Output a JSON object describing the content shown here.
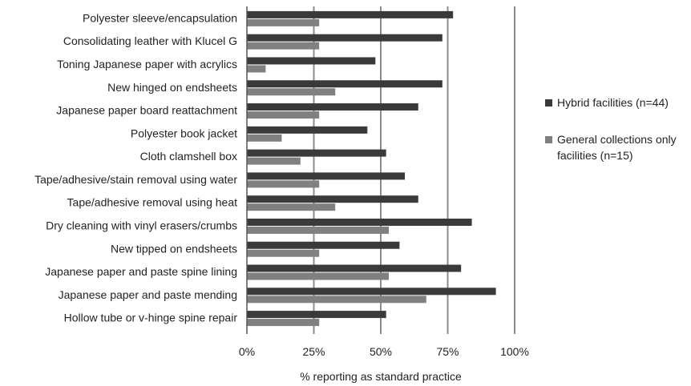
{
  "chart_data": {
    "type": "bar",
    "orientation": "horizontal",
    "categories": [
      "Polyester sleeve/encapsulation",
      "Consolidating leather with Klucel G",
      "Toning Japanese paper with acrylics",
      "New hinged on endsheets",
      "Japanese paper board reattachment",
      "Polyester book jacket",
      "Cloth clamshell box",
      "Tape/adhesive/stain removal using water",
      "Tape/adhesive removal using heat",
      "Dry cleaning with vinyl erasers/crumbs",
      "New tipped on endsheets",
      "Japanese paper and paste spine lining",
      "Japanese paper and paste mending",
      "Hollow tube or v-hinge spine repair"
    ],
    "series": [
      {
        "name": "Hybrid facilities (n=44)",
        "color": "#3a3a3a",
        "values": [
          77,
          73,
          48,
          73,
          64,
          45,
          52,
          59,
          64,
          84,
          57,
          80,
          93,
          52
        ]
      },
      {
        "name": "General collections only facilities (n=15)",
        "color": "#808080",
        "values": [
          27,
          27,
          7,
          33,
          27,
          13,
          20,
          27,
          33,
          53,
          27,
          53,
          67,
          27
        ]
      }
    ],
    "xlim": [
      0,
      100
    ],
    "xticks": [
      0,
      25,
      50,
      75,
      100
    ],
    "xtick_labels": [
      "0%",
      "25%",
      "50%",
      "75%",
      "100%"
    ],
    "xlabel": "% reporting as standard practice",
    "title": "",
    "ylabel": "",
    "grid": "vertical",
    "legend_position": "right"
  }
}
